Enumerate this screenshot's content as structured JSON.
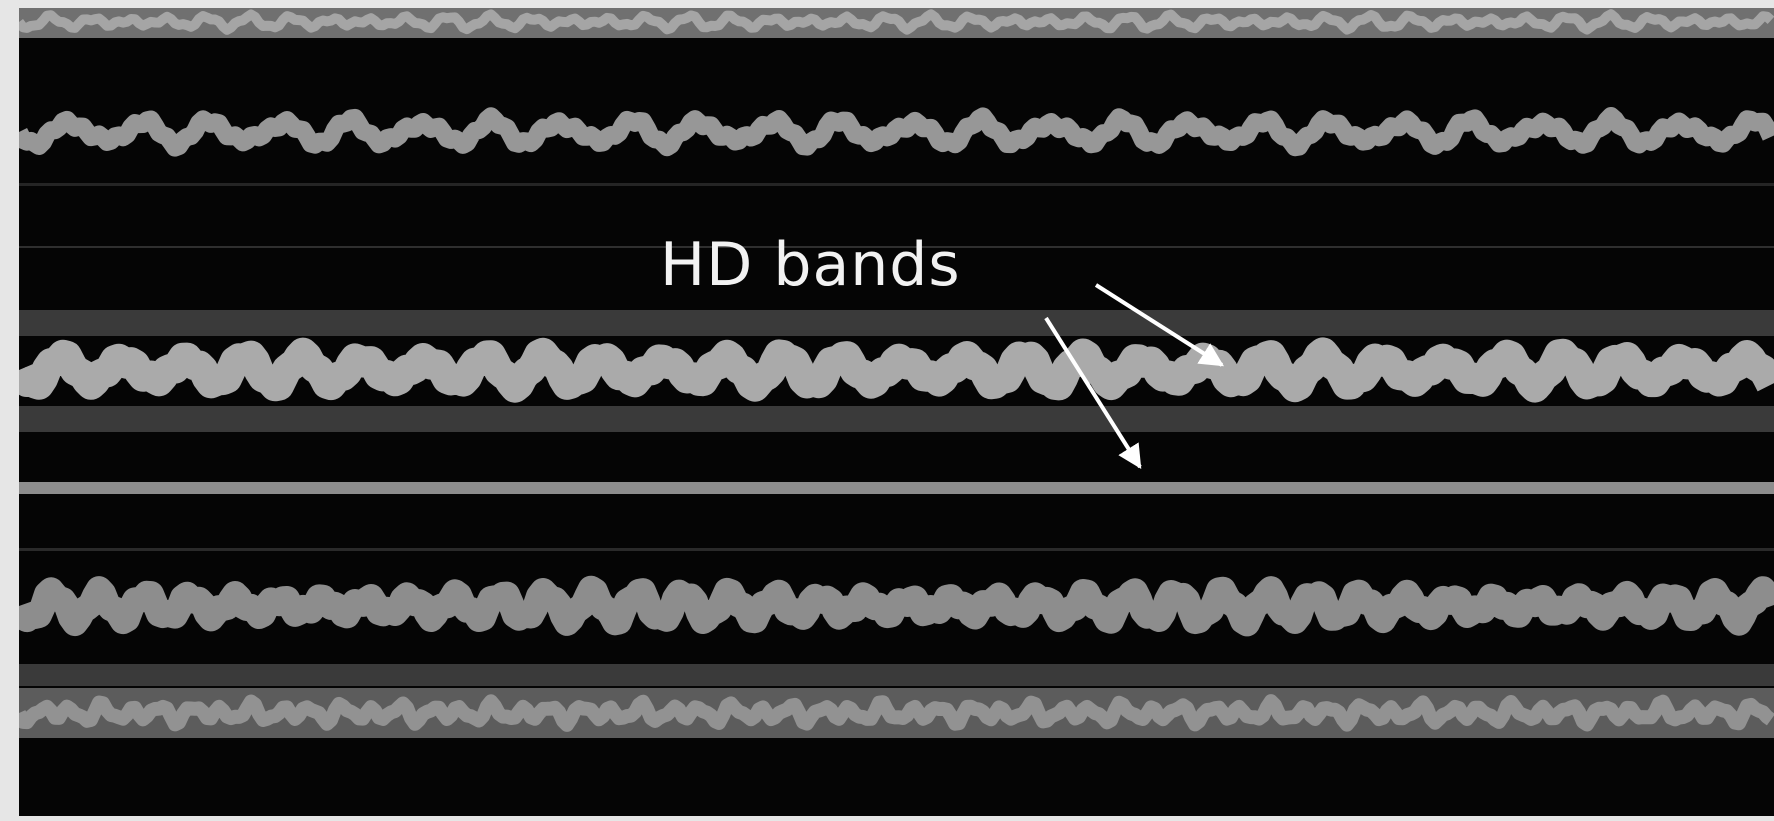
{
  "annotation": {
    "label": "HD bands"
  },
  "colors": {
    "background": "#050505",
    "signal": "#c8c8c8",
    "hd_band": "#3a3a3a",
    "annotation": "#f2f2f2"
  }
}
